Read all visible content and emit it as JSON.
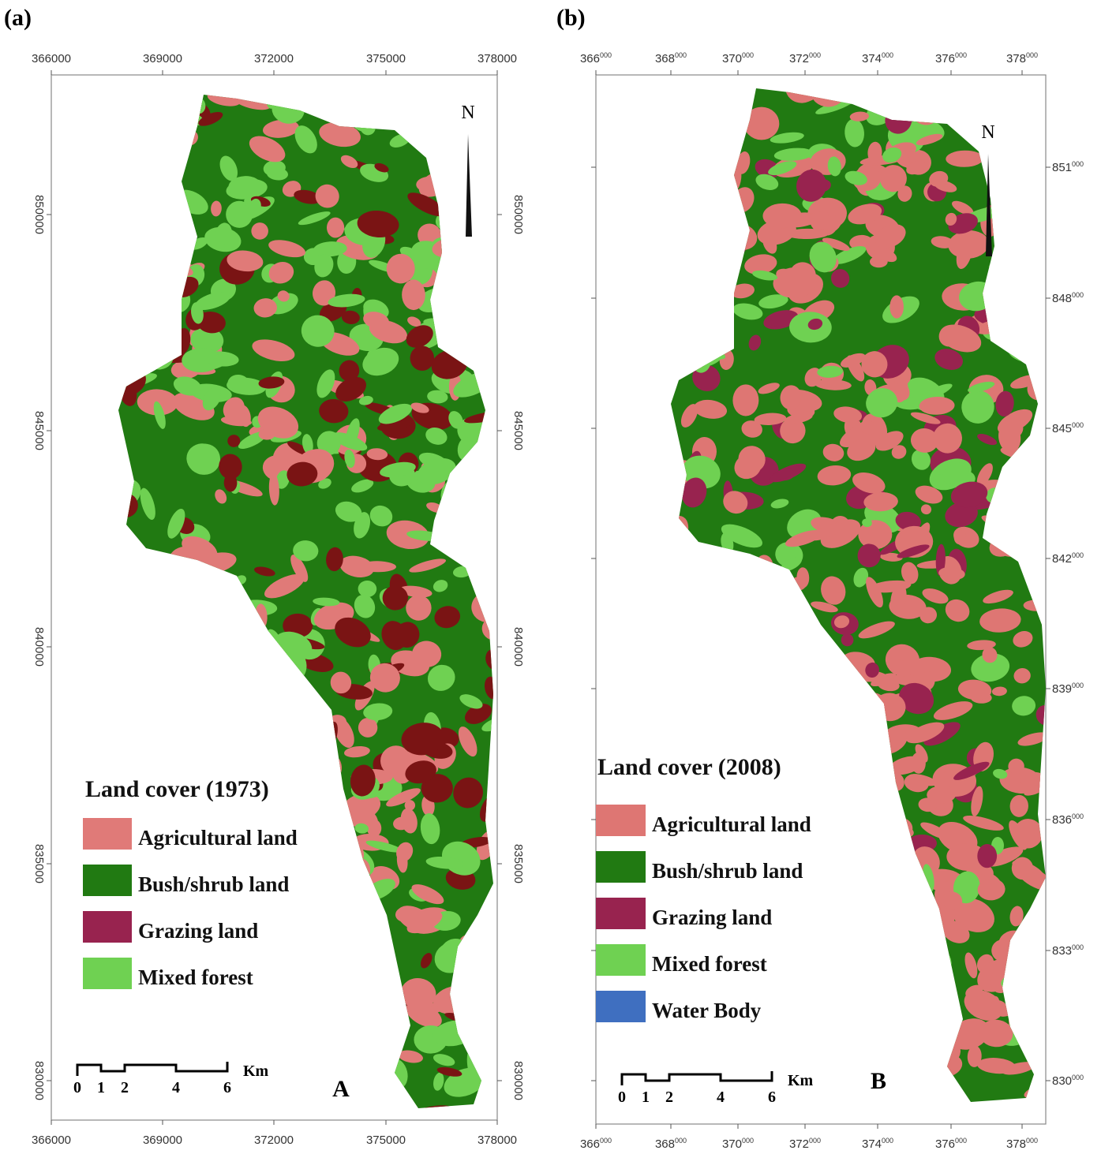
{
  "panels": [
    {
      "label": "(a)",
      "x_ticks": [
        "366000",
        "369000",
        "372000",
        "375000",
        "378000"
      ],
      "y_ticks": [
        "850000",
        "845000",
        "840000",
        "835000",
        "830000"
      ],
      "north": "N",
      "legend": {
        "title": "Land cover (1973)",
        "items": [
          {
            "label": "Agricultural land",
            "color": "#e07a78"
          },
          {
            "label": "Bush/shrub land",
            "color": "#217a12"
          },
          {
            "label": "Grazing land",
            "color": "#98234f"
          },
          {
            "label": "Mixed forest",
            "color": "#6fd152"
          }
        ]
      },
      "patch_color": "#7a1414",
      "scale": {
        "ticks": [
          "0",
          "1",
          "2",
          "4",
          "6"
        ],
        "unit": "Km"
      },
      "letter": "A"
    },
    {
      "label": "(b)",
      "x_ticks": [
        {
          "base": "366",
          "sup": "000"
        },
        {
          "base": "368",
          "sup": "000"
        },
        {
          "base": "370",
          "sup": "000"
        },
        {
          "base": "372",
          "sup": "000"
        },
        {
          "base": "374",
          "sup": "000"
        },
        {
          "base": "376",
          "sup": "000"
        },
        {
          "base": "378",
          "sup": "000"
        }
      ],
      "y_ticks": [
        {
          "base": "851",
          "sup": "000"
        },
        {
          "base": "848",
          "sup": "000"
        },
        {
          "base": "845",
          "sup": "000"
        },
        {
          "base": "842",
          "sup": "000"
        },
        {
          "base": "839",
          "sup": "000"
        },
        {
          "base": "836",
          "sup": "000"
        },
        {
          "base": "833",
          "sup": "000"
        },
        {
          "base": "830",
          "sup": "000"
        }
      ],
      "north": "N",
      "legend": {
        "title": "Land cover (2008)",
        "items": [
          {
            "label": "Agricultural land",
            "color": "#de7673"
          },
          {
            "label": "Bush/shrub land",
            "color": "#217a12"
          },
          {
            "label": "Grazing land",
            "color": "#98234f"
          },
          {
            "label": "Mixed forest",
            "color": "#6fd152"
          },
          {
            "label": "Water Body",
            "color": "#3f6fc0"
          }
        ]
      },
      "scale": {
        "ticks": [
          "0",
          "1",
          "2",
          "4",
          "6"
        ],
        "unit": "Km"
      },
      "letter": "B"
    }
  ]
}
